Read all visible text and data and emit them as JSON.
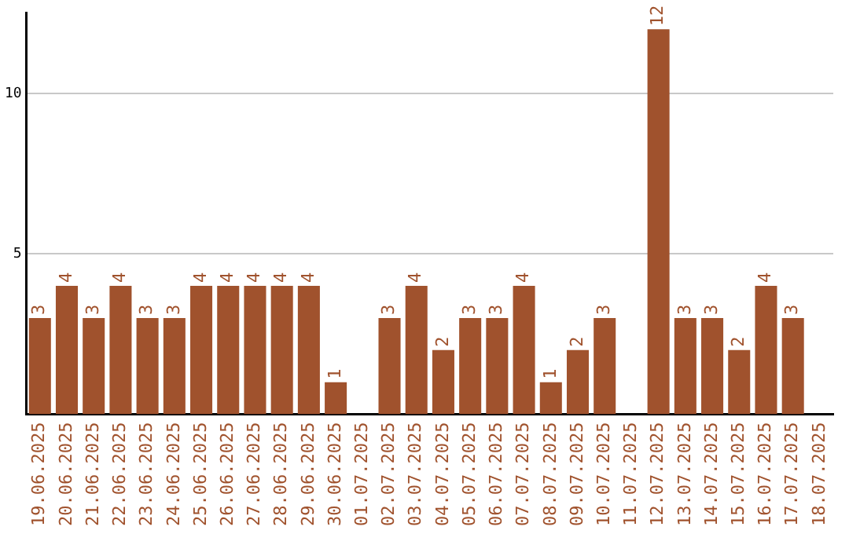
{
  "chart_data": {
    "type": "bar",
    "categories": [
      "19.06.2025",
      "20.06.2025",
      "21.06.2025",
      "22.06.2025",
      "23.06.2025",
      "24.06.2025",
      "25.06.2025",
      "26.06.2025",
      "27.06.2025",
      "28.06.2025",
      "29.06.2025",
      "30.06.2025",
      "01.07.2025",
      "02.07.2025",
      "03.07.2025",
      "04.07.2025",
      "05.07.2025",
      "06.07.2025",
      "07.07.2025",
      "08.07.2025",
      "09.07.2025",
      "10.07.2025",
      "11.07.2025",
      "12.07.2025",
      "13.07.2025",
      "14.07.2025",
      "15.07.2025",
      "16.07.2025",
      "17.07.2025",
      "18.07.2025"
    ],
    "values": [
      3,
      4,
      3,
      4,
      3,
      3,
      4,
      4,
      4,
      4,
      4,
      1,
      null,
      3,
      4,
      2,
      3,
      3,
      4,
      1,
      2,
      3,
      null,
      12,
      3,
      3,
      2,
      4,
      3,
      null
    ],
    "color": "#a0522d",
    "ylim": [
      0,
      12.5
    ],
    "yticks": [
      5,
      10
    ],
    "grid": "y",
    "data_labels": true,
    "legend": false
  }
}
